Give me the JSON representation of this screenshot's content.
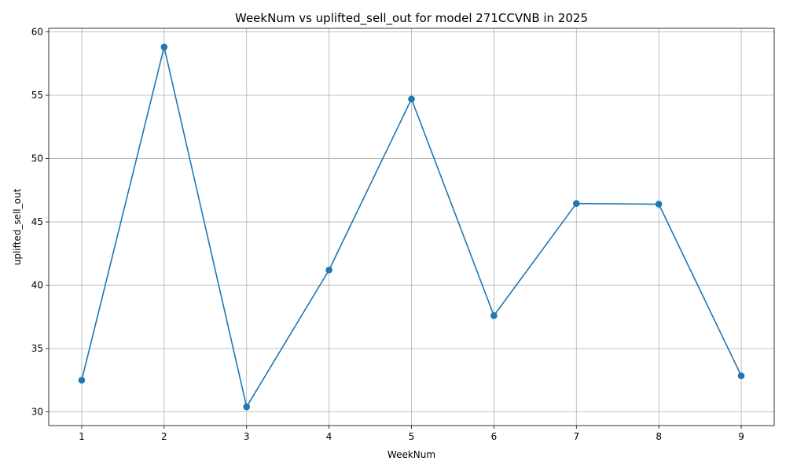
{
  "chart_data": {
    "type": "line",
    "title": "WeekNum vs uplifted_sell_out for model 271CCVNB in 2025",
    "xlabel": "WeekNum",
    "ylabel": "uplifted_sell_out",
    "x": [
      1,
      2,
      3,
      4,
      5,
      6,
      7,
      8,
      9
    ],
    "series": [
      {
        "values": [
          32.5,
          58.8,
          30.4,
          41.2,
          54.7,
          37.6,
          46.45,
          46.4,
          32.85
        ],
        "color": "#1f77b4",
        "marker": "circle"
      }
    ],
    "xlim": [
      0.6,
      9.4
    ],
    "ylim": [
      28.92,
      60.28
    ],
    "xticks": [
      1,
      2,
      3,
      4,
      5,
      6,
      7,
      8,
      9
    ],
    "yticks": [
      30,
      35,
      40,
      45,
      50,
      55,
      60
    ],
    "grid": true
  }
}
